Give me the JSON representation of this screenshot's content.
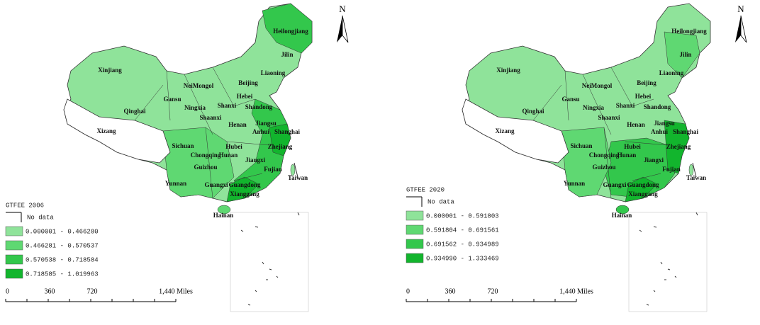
{
  "maps": [
    {
      "title": "GTFEE 2006",
      "no_data": "No data",
      "legend": [
        {
          "label": "0.000001 - 0.466280",
          "color": "#8fe39a"
        },
        {
          "label": "0.466281 - 0.570537",
          "color": "#5fd872"
        },
        {
          "label": "0.570538 - 0.718584",
          "color": "#33c74c"
        },
        {
          "label": "0.718585 - 1.019963",
          "color": "#12b52d"
        }
      ],
      "provinces": [
        "Heilongjiang",
        "Jilin",
        "Liaoning",
        "Xinjiang",
        "NeiMongol",
        "Beijing",
        "Hebei",
        "Gansu",
        "Ningxia",
        "Shanxi",
        "Shandong",
        "Qinghai",
        "Shaanxi",
        "Henan",
        "Jiangsu",
        "Xizang",
        "Anhui",
        "Shanghai",
        "Sichuan",
        "Hubei",
        "Zhejiang",
        "Chongqing",
        "Hunan",
        "Jiangxi",
        "Guizhou",
        "Fujian",
        "Taiwan",
        "Yunnan",
        "Guangxi",
        "Guangdong",
        "Xianggang",
        "Hainan"
      ],
      "scale": [
        "0",
        "360",
        "720",
        "1,440 Miles"
      ],
      "north": "N"
    },
    {
      "title": "GTFEE 2020",
      "no_data": "No data",
      "legend": [
        {
          "label": "0.000001 - 0.591803",
          "color": "#8fe39a"
        },
        {
          "label": "0.591804 - 0.691561",
          "color": "#5fd872"
        },
        {
          "label": "0.691562 - 0.934989",
          "color": "#33c74c"
        },
        {
          "label": "0.934990 - 1.333469",
          "color": "#12b52d"
        }
      ],
      "provinces": [
        "Heilongjiang",
        "Jilin",
        "Liaoning",
        "Xinjiang",
        "NeiMongol",
        "Beijing",
        "Hebei",
        "Gansu",
        "Ningxia",
        "Shanxi",
        "Shandong",
        "Qinghai",
        "Shaanxi",
        "Henan",
        "Jiangsu",
        "Xizang",
        "Anhui",
        "Shanghai",
        "Sichuan",
        "Hubei",
        "Zhejiang",
        "Chongqing",
        "Hunan",
        "Jiangxi",
        "Guizhou",
        "Fujian",
        "Taiwan",
        "Yunnan",
        "Guangxi",
        "Guangdong",
        "Xianggang",
        "Hainan"
      ],
      "scale": [
        "0",
        "360",
        "720",
        "1,440 Miles"
      ],
      "north": "N"
    }
  ]
}
